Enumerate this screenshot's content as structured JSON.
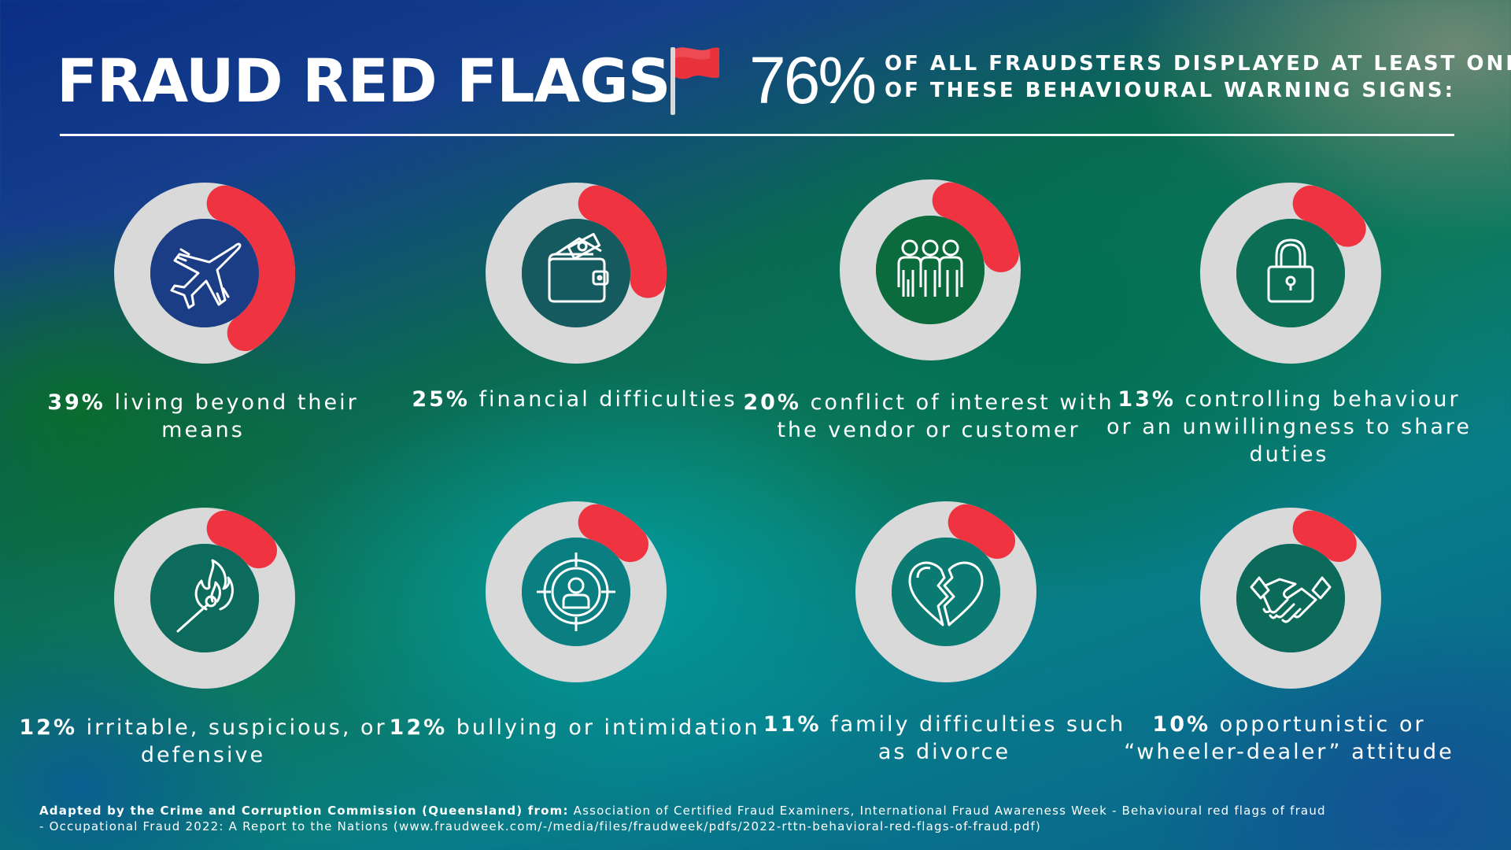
{
  "header": {
    "title": "FRAUD RED FLAGS",
    "big_stat": "76%",
    "stat_line1": "OF ALL FRAUDSTERS DISPLAYED AT LEAST ONE",
    "stat_line2": "OF THESE BEHAVIOURAL WARNING SIGNS:"
  },
  "colors": {
    "ring_track": "#d9d9d9",
    "ring_fill": "#ef3340",
    "inner_blue": "#1b3d86",
    "inner_teal": "#0c6f68",
    "inner_green": "#0b6b3c",
    "flag_red": "#e8323c"
  },
  "flags": [
    {
      "percent": "39%",
      "text": "living beyond their means",
      "value": 0.39,
      "icon": "airplane-icon",
      "inner": "#1b3d86"
    },
    {
      "percent": "25%",
      "text": "financial difficulties",
      "value": 0.25,
      "icon": "wallet-icon",
      "inner": "#145a5e"
    },
    {
      "percent": "20%",
      "text": "conflict of interest with the vendor or customer",
      "value": 0.2,
      "icon": "people-group-icon",
      "inner": "#0b6b3c"
    },
    {
      "percent": "13%",
      "text": "controlling behaviour or an unwillingness to share duties",
      "value": 0.13,
      "icon": "padlock-icon",
      "inner": "#0c6e55"
    },
    {
      "percent": "12%",
      "text": "irritable, suspicious, or defensive",
      "value": 0.12,
      "icon": "burning-match-icon",
      "inner": "#0c6b5c"
    },
    {
      "percent": "12%",
      "text": "bullying or intimidation",
      "value": 0.12,
      "icon": "target-person-icon",
      "inner": "#0a7e80"
    },
    {
      "percent": "11%",
      "text": "family difficulties such as divorce",
      "value": 0.11,
      "icon": "broken-heart-icon",
      "inner": "#0b7a72"
    },
    {
      "percent": "10%",
      "text": "opportunistic or “wheeler-dealer” attitude",
      "value": 0.1,
      "icon": "handshake-icon",
      "inner": "#0c6a5a"
    }
  ],
  "footer": {
    "bold": "Adapted by the Crime and Corruption Commission (Queensland) from:",
    "line1": "Association of Certified Fraud Examiners, International Fraud Awareness Week - Behavioural red flags of fraud",
    "line2": "- Occupational Fraud 2022: A Report to the Nations (www.fraudweek.com/-/media/files/fraudweek/pdfs/2022-rttn-behavioral-red-flags-of-fraud.pdf)"
  }
}
